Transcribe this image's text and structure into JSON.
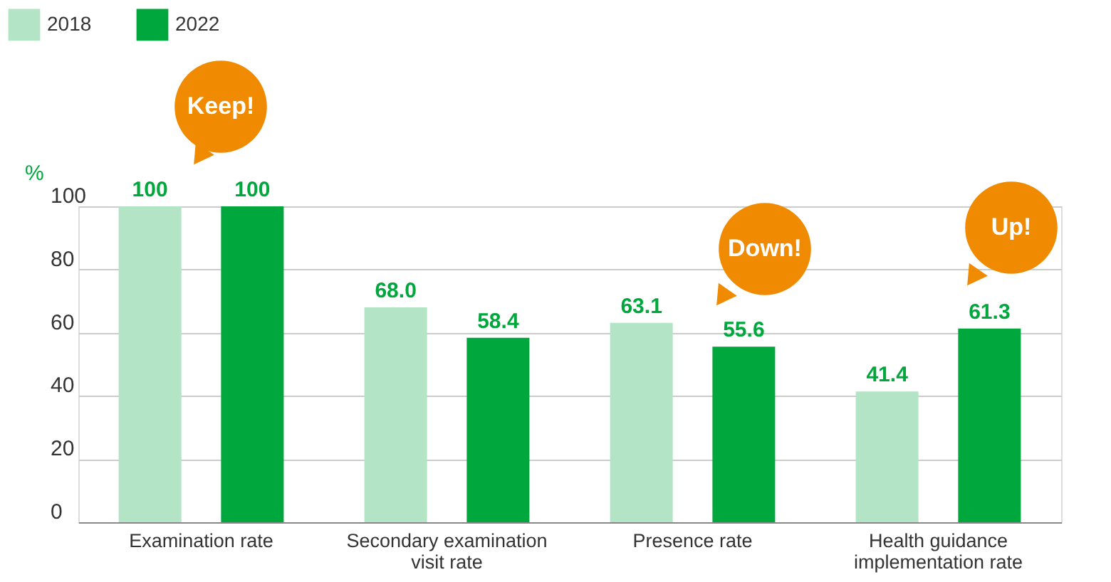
{
  "chart_data": {
    "type": "bar",
    "ylabel": "%",
    "categories": [
      "Examination rate",
      "Secondary examination visit rate",
      "Presence rate",
      "Health guidance implementation rate"
    ],
    "series": [
      {
        "name": "2018",
        "color": "#b3e4c6",
        "values": [
          100,
          68.0,
          63.1,
          41.4
        ],
        "value_labels": [
          "100",
          "68.0",
          "63.1",
          "41.4"
        ]
      },
      {
        "name": "2022",
        "color": "#00a73c",
        "values": [
          100,
          58.4,
          55.6,
          61.3
        ],
        "value_labels": [
          "100",
          "58.4",
          "55.6",
          "61.3"
        ]
      }
    ],
    "ylim": [
      0,
      100
    ],
    "yticks": [
      0,
      20,
      40,
      60,
      80,
      100
    ],
    "grid": "y",
    "legend": "top left",
    "annotations": [
      "Keep!",
      "Down!",
      "Up!"
    ]
  }
}
